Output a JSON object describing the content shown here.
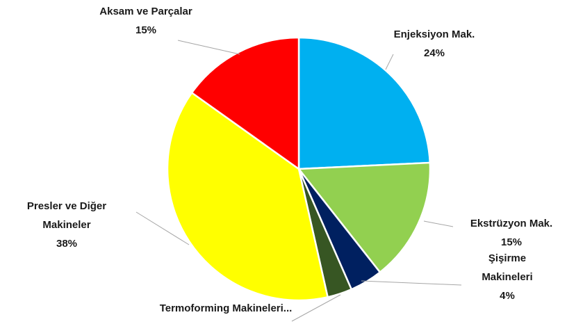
{
  "chart_data": {
    "type": "pie",
    "categories": [
      "Enjeksiyon Mak.",
      "Ekstrüzyon Mak.",
      "Şişirme Makineleri",
      "Termoforming Makineleri...",
      "Presler ve Diğer Makineler",
      "Aksam ve Parçalar"
    ],
    "values": [
      24,
      15,
      4,
      3,
      38,
      15
    ],
    "value_labels": [
      "24%",
      "15%",
      "4%",
      null,
      "38%",
      "15%"
    ],
    "colors": [
      "#00b0f0",
      "#92d050",
      "#002060",
      "#375623",
      "#ffff00",
      "#ff0000"
    ]
  }
}
